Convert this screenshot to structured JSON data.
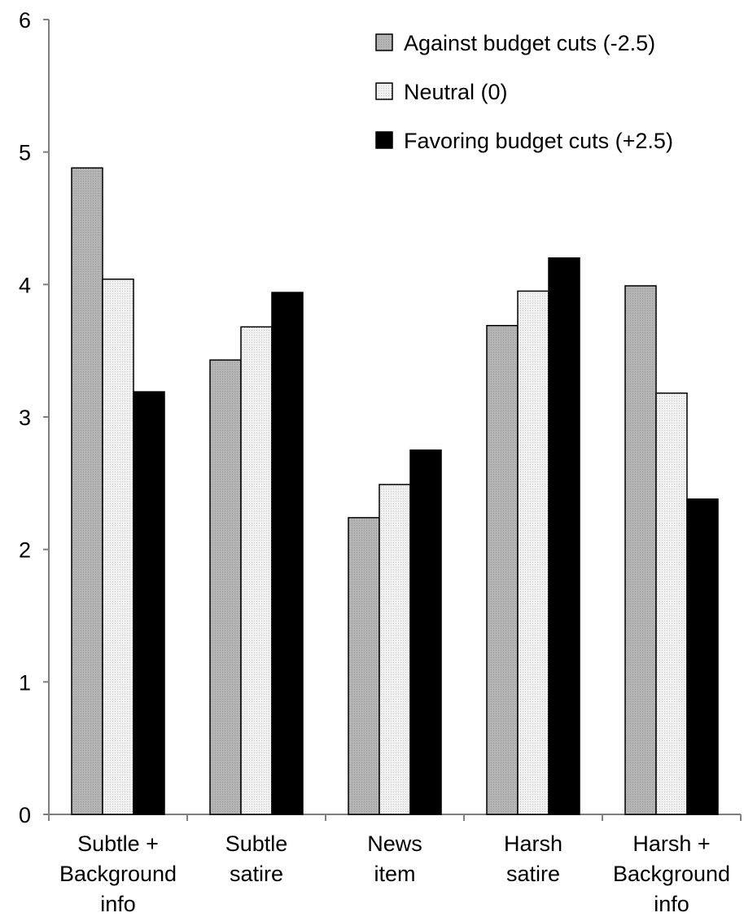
{
  "chart_data": {
    "type": "bar",
    "title": "",
    "xlabel": "",
    "ylabel": "",
    "ylim": [
      0,
      6
    ],
    "yticks": [
      0,
      1,
      2,
      3,
      4,
      5,
      6
    ],
    "grid": false,
    "legend_position": "top-right",
    "categories": [
      [
        "Subtle +",
        "Background",
        "info"
      ],
      [
        "Subtle",
        "satire"
      ],
      [
        "News",
        "item"
      ],
      [
        "Harsh",
        "satire"
      ],
      [
        "Harsh +",
        "Background",
        "info"
      ]
    ],
    "series": [
      {
        "name": "Against budget cuts (-2.5)",
        "color": "#b0b0b0",
        "pattern": "dots",
        "values": [
          4.88,
          3.43,
          2.24,
          3.69,
          3.99
        ]
      },
      {
        "name": "Neutral (0)",
        "color": "#ececec",
        "pattern": "dots",
        "values": [
          4.04,
          3.68,
          2.49,
          3.95,
          3.18
        ]
      },
      {
        "name": "Favoring budget cuts (+2.5)",
        "color": "#000000",
        "pattern": "solid",
        "values": [
          3.19,
          3.94,
          2.75,
          4.2,
          2.38
        ]
      }
    ]
  }
}
